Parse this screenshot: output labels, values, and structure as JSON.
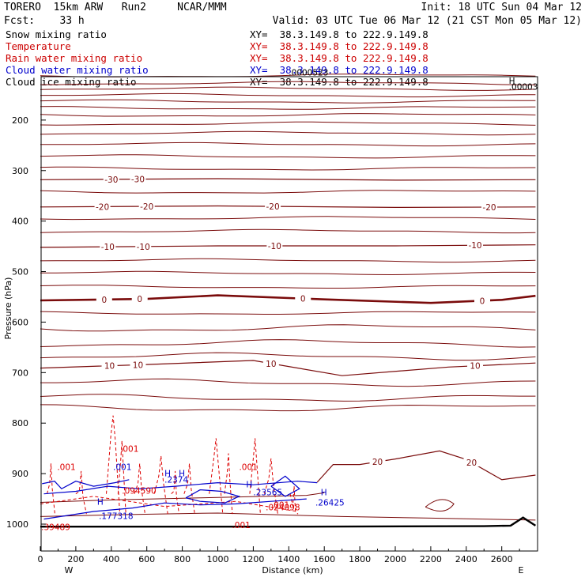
{
  "header": {
    "model": "TORERO  15km ARW   Run2     NCAR/MMM",
    "init": "Init: 18 UTC Sun 04 Mar 12",
    "fcst": "Fcst:    33 h",
    "valid": "Valid: 03 UTC Tue 06 Mar 12 (21 CST Mon 05 Mar 12)"
  },
  "legend": [
    {
      "name": "Snow mixing ratio",
      "color": "#000000",
      "xy": "XY=  38.3.149.8 to 222.9.149.8"
    },
    {
      "name": "Temperature",
      "color": "#cc0000",
      "xy": "XY=  38.3.149.8 to 222.9.149.8"
    },
    {
      "name": "Rain water mixing ratio",
      "color": "#cc0000",
      "xy": "XY=  38.3.149.8 to 222.9.149.8"
    },
    {
      "name": "Cloud water mixing ratio",
      "color": "#0000cc",
      "xy": "XY=  38.3.149.8 to 222.9.149.8"
    },
    {
      "name": "Cloud ice mixing ratio",
      "color": "#000000",
      "xy": "XY=  38.3.149.8 to 222.9.149.8"
    }
  ],
  "colors": {
    "temperature": "#7a0b0b",
    "rain": "#dd0000",
    "cloud_water": "#0000cc",
    "snow": "#000000"
  },
  "chart_data": {
    "type": "line",
    "xlabel": "Distance (km)",
    "ylabel": "Pressure (hPa)",
    "xlim": [
      0,
      2790
    ],
    "ylim": [
      1037,
      100
    ],
    "xticks": [
      0,
      200,
      400,
      600,
      800,
      1000,
      1200,
      1400,
      1600,
      1800,
      2000,
      2200,
      2400,
      2600
    ],
    "yticks": [
      200,
      300,
      400,
      500,
      600,
      700,
      800,
      900,
      1000
    ],
    "x_end_labels": {
      "left": "W",
      "right": "E"
    },
    "temperature_isotherms": [
      {
        "label": "-30",
        "label_x": [
          400,
          550
        ],
        "points": [
          [
            0,
            318
          ],
          [
            1000,
            316
          ],
          [
            2000,
            319
          ],
          [
            2790,
            318
          ]
        ]
      },
      {
        "label": "-20",
        "label_x": [
          350,
          600,
          1310,
          2530
        ],
        "points": [
          [
            0,
            372
          ],
          [
            1000,
            370
          ],
          [
            2000,
            373
          ],
          [
            2790,
            372
          ]
        ]
      },
      {
        "label": "-10",
        "label_x": [
          380,
          580,
          1320,
          2450
        ],
        "points": [
          [
            0,
            452
          ],
          [
            1000,
            449
          ],
          [
            2000,
            449
          ],
          [
            2790,
            447
          ]
        ]
      },
      {
        "label": "0",
        "label_x": [
          360,
          560,
          1480,
          2490
        ],
        "points": [
          [
            0,
            557
          ],
          [
            600,
            554
          ],
          [
            1000,
            547
          ],
          [
            1600,
            555
          ],
          [
            2200,
            562
          ],
          [
            2600,
            556
          ],
          [
            2790,
            548
          ]
        ]
      },
      {
        "label": "10",
        "label_x": [
          390,
          550,
          1300,
          2450
        ],
        "points": [
          [
            0,
            691
          ],
          [
            600,
            684
          ],
          [
            1200,
            676
          ],
          [
            1700,
            706
          ],
          [
            2300,
            689
          ],
          [
            2790,
            681
          ]
        ]
      },
      {
        "label": "20",
        "label_x": [
          1900,
          2430
        ],
        "points": [
          [
            1560,
            917
          ],
          [
            1650,
            882
          ],
          [
            1800,
            882
          ],
          [
            2000,
            871
          ],
          [
            2250,
            855
          ],
          [
            2400,
            872
          ],
          [
            2600,
            912
          ],
          [
            2790,
            903
          ]
        ]
      }
    ],
    "rain_water_labels": [
      ".001",
      ".001",
      ".094590",
      ".001",
      ".024098",
      ".001",
      ".001"
    ],
    "cloud_water_labels": [
      ".001",
      ".177318",
      ".2374",
      ".23565",
      ".26425"
    ],
    "max_labels": [
      "H",
      "H",
      "H",
      "H",
      "H",
      "H"
    ],
    "min_labels": [
      ".0000523",
      ".00003",
      ".39489"
    ]
  }
}
